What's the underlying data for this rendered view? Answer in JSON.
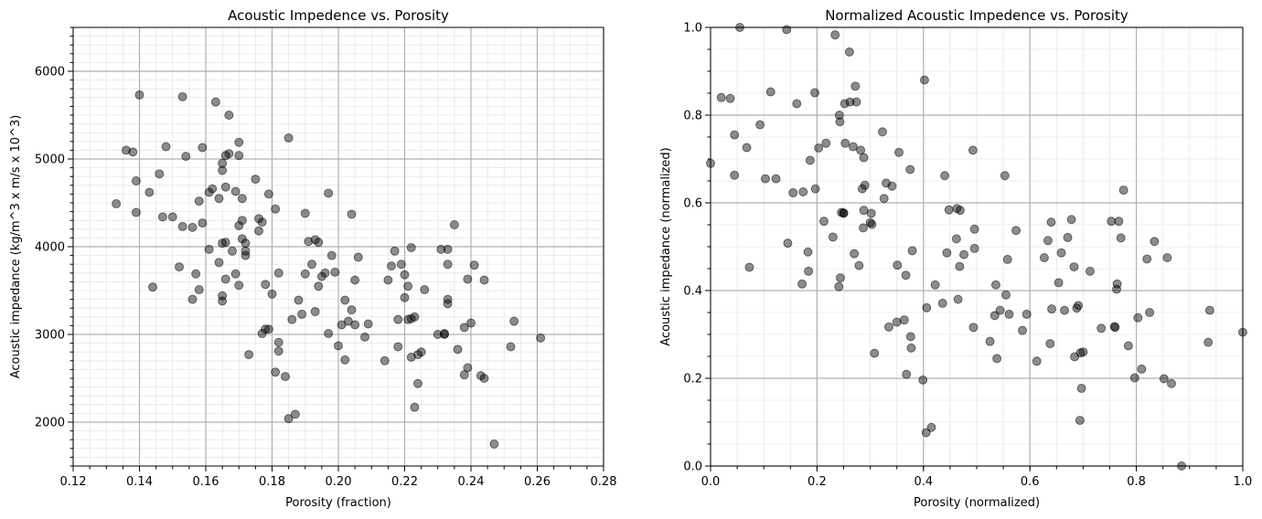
{
  "chart_data": [
    {
      "type": "scatter",
      "title": "Acoustic Impedence vs. Porosity",
      "xlabel": "Porosity (fraction)",
      "ylabel": "Acoustic impedance (kg/m^3 x m/s x 10^3)",
      "xlim": [
        0.12,
        0.28
      ],
      "ylim": [
        1500,
        6500
      ],
      "xticks": [
        "0.12",
        "0.14",
        "0.16",
        "0.18",
        "0.20",
        "0.22",
        "0.24",
        "0.26",
        "0.28"
      ],
      "yticks": [
        "2000",
        "3000",
        "4000",
        "5000",
        "6000"
      ],
      "grid": true,
      "marker_color": "#000000",
      "marker_alpha": 0.45,
      "points": [
        [
          0.133,
          4490
        ],
        [
          0.136,
          5100
        ],
        [
          0.138,
          5080
        ],
        [
          0.139,
          4750
        ],
        [
          0.139,
          4390
        ],
        [
          0.14,
          5730
        ],
        [
          0.143,
          4620
        ],
        [
          0.144,
          3540
        ],
        [
          0.146,
          4830
        ],
        [
          0.147,
          4340
        ],
        [
          0.148,
          5140
        ],
        [
          0.15,
          4340
        ],
        [
          0.153,
          5710
        ],
        [
          0.153,
          4230
        ],
        [
          0.152,
          3770
        ],
        [
          0.154,
          5030
        ],
        [
          0.156,
          4220
        ],
        [
          0.156,
          3400
        ],
        [
          0.157,
          3690
        ],
        [
          0.158,
          3510
        ],
        [
          0.158,
          4520
        ],
        [
          0.159,
          5130
        ],
        [
          0.159,
          4270
        ],
        [
          0.161,
          4620
        ],
        [
          0.161,
          3970
        ],
        [
          0.162,
          4660
        ],
        [
          0.163,
          5650
        ],
        [
          0.164,
          4550
        ],
        [
          0.164,
          3820
        ],
        [
          0.165,
          4950
        ],
        [
          0.165,
          4870
        ],
        [
          0.165,
          3380
        ],
        [
          0.165,
          3440
        ],
        [
          0.165,
          4040
        ],
        [
          0.166,
          4050
        ],
        [
          0.166,
          5040
        ],
        [
          0.166,
          4680
        ],
        [
          0.166,
          3630
        ],
        [
          0.167,
          5060
        ],
        [
          0.167,
          5500
        ],
        [
          0.168,
          3950
        ],
        [
          0.169,
          4630
        ],
        [
          0.169,
          3690
        ],
        [
          0.17,
          5190
        ],
        [
          0.17,
          5040
        ],
        [
          0.17,
          3560
        ],
        [
          0.17,
          4240
        ],
        [
          0.171,
          4550
        ],
        [
          0.171,
          4090
        ],
        [
          0.171,
          4300
        ],
        [
          0.172,
          3900
        ],
        [
          0.172,
          3950
        ],
        [
          0.172,
          4040
        ],
        [
          0.173,
          2770
        ],
        [
          0.175,
          4770
        ],
        [
          0.176,
          4320
        ],
        [
          0.176,
          4180
        ],
        [
          0.177,
          3010
        ],
        [
          0.177,
          4280
        ],
        [
          0.178,
          3060
        ],
        [
          0.178,
          3570
        ],
        [
          0.179,
          4600
        ],
        [
          0.179,
          3060
        ],
        [
          0.18,
          3460
        ],
        [
          0.181,
          2570
        ],
        [
          0.181,
          4430
        ],
        [
          0.182,
          3700
        ],
        [
          0.182,
          2910
        ],
        [
          0.182,
          2810
        ],
        [
          0.184,
          2520
        ],
        [
          0.185,
          5240
        ],
        [
          0.185,
          2040
        ],
        [
          0.186,
          3170
        ],
        [
          0.187,
          2090
        ],
        [
          0.188,
          3390
        ],
        [
          0.189,
          3230
        ],
        [
          0.19,
          4380
        ],
        [
          0.19,
          3690
        ],
        [
          0.191,
          4060
        ],
        [
          0.192,
          3800
        ],
        [
          0.193,
          4080
        ],
        [
          0.193,
          3260
        ],
        [
          0.194,
          3550
        ],
        [
          0.194,
          4050
        ],
        [
          0.195,
          3660
        ],
        [
          0.196,
          3700
        ],
        [
          0.197,
          4610
        ],
        [
          0.197,
          3010
        ],
        [
          0.198,
          3900
        ],
        [
          0.199,
          3710
        ],
        [
          0.2,
          2870
        ],
        [
          0.201,
          3110
        ],
        [
          0.202,
          3390
        ],
        [
          0.202,
          2710
        ],
        [
          0.203,
          3150
        ],
        [
          0.204,
          4370
        ],
        [
          0.204,
          3280
        ],
        [
          0.205,
          3620
        ],
        [
          0.205,
          3110
        ],
        [
          0.206,
          3880
        ],
        [
          0.208,
          2970
        ],
        [
          0.209,
          3120
        ],
        [
          0.214,
          2700
        ],
        [
          0.215,
          3620
        ],
        [
          0.216,
          3780
        ],
        [
          0.217,
          3950
        ],
        [
          0.218,
          2860
        ],
        [
          0.218,
          3170
        ],
        [
          0.219,
          3800
        ],
        [
          0.22,
          3680
        ],
        [
          0.22,
          3420
        ],
        [
          0.221,
          3170
        ],
        [
          0.221,
          3550
        ],
        [
          0.222,
          3990
        ],
        [
          0.222,
          2740
        ],
        [
          0.222,
          3180
        ],
        [
          0.223,
          3200
        ],
        [
          0.223,
          2170
        ],
        [
          0.224,
          2770
        ],
        [
          0.224,
          2440
        ],
        [
          0.225,
          2800
        ],
        [
          0.226,
          3510
        ],
        [
          0.23,
          3000
        ],
        [
          0.231,
          3970
        ],
        [
          0.232,
          3000
        ],
        [
          0.232,
          3010
        ],
        [
          0.233,
          3970
        ],
        [
          0.233,
          3400
        ],
        [
          0.233,
          3350
        ],
        [
          0.233,
          3800
        ],
        [
          0.235,
          4250
        ],
        [
          0.236,
          2830
        ],
        [
          0.238,
          2540
        ],
        [
          0.238,
          3080
        ],
        [
          0.239,
          3630
        ],
        [
          0.239,
          2620
        ],
        [
          0.24,
          3130
        ],
        [
          0.241,
          3790
        ],
        [
          0.243,
          2530
        ],
        [
          0.244,
          2500
        ],
        [
          0.244,
          3620
        ],
        [
          0.247,
          1750
        ],
        [
          0.252,
          2860
        ],
        [
          0.253,
          3150
        ],
        [
          0.261,
          2960
        ]
      ]
    },
    {
      "type": "scatter",
      "title": "Normalized Acoustic Impedence vs. Porosity",
      "xlabel": "Porosity (normalized)",
      "ylabel": "Acoustic impedance (normalized)",
      "xlim": [
        0.0,
        1.0
      ],
      "ylim": [
        0.0,
        1.0
      ],
      "xticks": [
        "0.0",
        "0.2",
        "0.4",
        "0.6",
        "0.8",
        "1.0"
      ],
      "yticks": [
        "0.0",
        "0.2",
        "0.4",
        "0.6",
        "0.8",
        "1.0"
      ],
      "grid": true,
      "marker_color": "#000000",
      "marker_alpha": 0.45,
      "points": [
        [
          0.0,
          0.69
        ],
        [
          0.02,
          0.84
        ],
        [
          0.037,
          0.838
        ],
        [
          0.045,
          0.755
        ],
        [
          0.045,
          0.663
        ],
        [
          0.055,
          1.0
        ],
        [
          0.068,
          0.726
        ],
        [
          0.073,
          0.453
        ],
        [
          0.093,
          0.778
        ],
        [
          0.103,
          0.655
        ],
        [
          0.113,
          0.853
        ],
        [
          0.123,
          0.655
        ],
        [
          0.143,
          0.995
        ],
        [
          0.145,
          0.508
        ],
        [
          0.155,
          0.623
        ],
        [
          0.162,
          0.826
        ],
        [
          0.172,
          0.415
        ],
        [
          0.174,
          0.625
        ],
        [
          0.183,
          0.488
        ],
        [
          0.184,
          0.444
        ],
        [
          0.187,
          0.697
        ],
        [
          0.196,
          0.851
        ],
        [
          0.197,
          0.632
        ],
        [
          0.203,
          0.725
        ],
        [
          0.213,
          0.558
        ],
        [
          0.217,
          0.736
        ],
        [
          0.23,
          0.522
        ],
        [
          0.234,
          0.983
        ],
        [
          0.241,
          0.409
        ],
        [
          0.242,
          0.8
        ],
        [
          0.243,
          0.785
        ],
        [
          0.244,
          0.429
        ],
        [
          0.246,
          0.578
        ],
        [
          0.25,
          0.577
        ],
        [
          0.25,
          0.576
        ],
        [
          0.252,
          0.826
        ],
        [
          0.253,
          0.736
        ],
        [
          0.261,
          0.944
        ],
        [
          0.262,
          0.83
        ],
        [
          0.268,
          0.728
        ],
        [
          0.27,
          0.484
        ],
        [
          0.272,
          0.866
        ],
        [
          0.274,
          0.83
        ],
        [
          0.279,
          0.457
        ],
        [
          0.282,
          0.72
        ],
        [
          0.285,
          0.632
        ],
        [
          0.287,
          0.543
        ],
        [
          0.288,
          0.583
        ],
        [
          0.288,
          0.703
        ],
        [
          0.29,
          0.64
        ],
        [
          0.3,
          0.555
        ],
        [
          0.302,
          0.576
        ],
        [
          0.303,
          0.551
        ],
        [
          0.308,
          0.257
        ],
        [
          0.323,
          0.762
        ],
        [
          0.326,
          0.61
        ],
        [
          0.33,
          0.645
        ],
        [
          0.335,
          0.317
        ],
        [
          0.341,
          0.638
        ],
        [
          0.35,
          0.328
        ],
        [
          0.351,
          0.458
        ],
        [
          0.354,
          0.715
        ],
        [
          0.364,
          0.333
        ],
        [
          0.367,
          0.435
        ],
        [
          0.368,
          0.209
        ],
        [
          0.375,
          0.676
        ],
        [
          0.376,
          0.295
        ],
        [
          0.377,
          0.269
        ],
        [
          0.379,
          0.491
        ],
        [
          0.399,
          0.196
        ],
        [
          0.402,
          0.88
        ],
        [
          0.405,
          0.076
        ],
        [
          0.406,
          0.361
        ],
        [
          0.415,
          0.088
        ],
        [
          0.422,
          0.413
        ],
        [
          0.436,
          0.371
        ],
        [
          0.44,
          0.662
        ],
        [
          0.444,
          0.486
        ],
        [
          0.448,
          0.584
        ],
        [
          0.462,
          0.518
        ],
        [
          0.463,
          0.587
        ],
        [
          0.465,
          0.38
        ],
        [
          0.468,
          0.455
        ],
        [
          0.469,
          0.583
        ],
        [
          0.476,
          0.482
        ],
        [
          0.493,
          0.72
        ],
        [
          0.494,
          0.316
        ],
        [
          0.496,
          0.496
        ],
        [
          0.496,
          0.54
        ],
        [
          0.525,
          0.284
        ],
        [
          0.534,
          0.343
        ],
        [
          0.536,
          0.413
        ],
        [
          0.538,
          0.245
        ],
        [
          0.544,
          0.355
        ],
        [
          0.553,
          0.662
        ],
        [
          0.555,
          0.39
        ],
        [
          0.558,
          0.471
        ],
        [
          0.561,
          0.346
        ],
        [
          0.574,
          0.537
        ],
        [
          0.586,
          0.309
        ],
        [
          0.594,
          0.346
        ],
        [
          0.613,
          0.239
        ],
        [
          0.627,
          0.475
        ],
        [
          0.634,
          0.514
        ],
        [
          0.638,
          0.279
        ],
        [
          0.64,
          0.556
        ],
        [
          0.641,
          0.358
        ],
        [
          0.654,
          0.418
        ],
        [
          0.659,
          0.486
        ],
        [
          0.665,
          0.355
        ],
        [
          0.671,
          0.521
        ],
        [
          0.678,
          0.562
        ],
        [
          0.683,
          0.454
        ],
        [
          0.684,
          0.249
        ],
        [
          0.688,
          0.36
        ],
        [
          0.691,
          0.366
        ],
        [
          0.694,
          0.104
        ],
        [
          0.695,
          0.258
        ],
        [
          0.697,
          0.177
        ],
        [
          0.7,
          0.26
        ],
        [
          0.713,
          0.444
        ],
        [
          0.734,
          0.314
        ],
        [
          0.753,
          0.558
        ],
        [
          0.759,
          0.318
        ],
        [
          0.76,
          0.316
        ],
        [
          0.763,
          0.403
        ],
        [
          0.764,
          0.415
        ],
        [
          0.767,
          0.558
        ],
        [
          0.771,
          0.52
        ],
        [
          0.776,
          0.629
        ],
        [
          0.785,
          0.274
        ],
        [
          0.797,
          0.201
        ],
        [
          0.803,
          0.338
        ],
        [
          0.81,
          0.221
        ],
        [
          0.82,
          0.472
        ],
        [
          0.825,
          0.35
        ],
        [
          0.834,
          0.512
        ],
        [
          0.852,
          0.199
        ],
        [
          0.858,
          0.475
        ],
        [
          0.866,
          0.188
        ],
        [
          0.885,
          0.0
        ],
        [
          0.935,
          0.282
        ],
        [
          0.938,
          0.355
        ],
        [
          1.0,
          0.305
        ]
      ]
    }
  ]
}
